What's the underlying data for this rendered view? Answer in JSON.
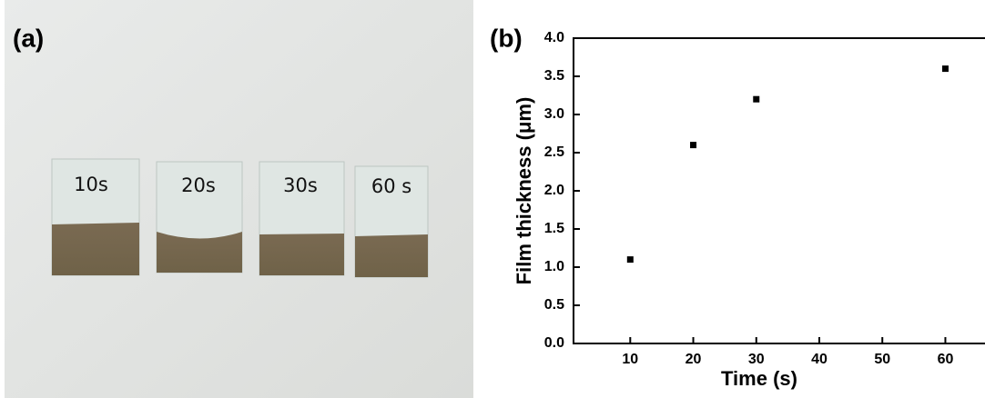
{
  "photo": {
    "panel_label": "(a)",
    "slide_labels": [
      "10s",
      "20s",
      "30s",
      "60 s"
    ]
  },
  "chart_data": {
    "type": "scatter",
    "panel_label": "(b)",
    "x_label": "Time (s)",
    "y_label": "Film thickness (μm)",
    "x": [
      10,
      20,
      30,
      60
    ],
    "values": [
      1.1,
      2.6,
      3.2,
      3.6
    ],
    "color": "#000000",
    "xlim": [
      1,
      66
    ],
    "xticks": [
      10,
      20,
      30,
      40,
      50,
      60
    ],
    "ylim": [
      0,
      4
    ],
    "yticks": [
      {
        "value": 0,
        "label": "0.0"
      },
      {
        "value": 0.5,
        "label": "0.5"
      },
      {
        "value": 1,
        "label": "1.0"
      },
      {
        "value": 1.5,
        "label": "1.5"
      },
      {
        "value": 2,
        "label": "2.0"
      },
      {
        "value": 2.5,
        "label": "2.5"
      },
      {
        "value": 3,
        "label": "3.0"
      },
      {
        "value": 3.5,
        "label": "3.5"
      },
      {
        "value": 4,
        "label": "4.0"
      }
    ]
  }
}
